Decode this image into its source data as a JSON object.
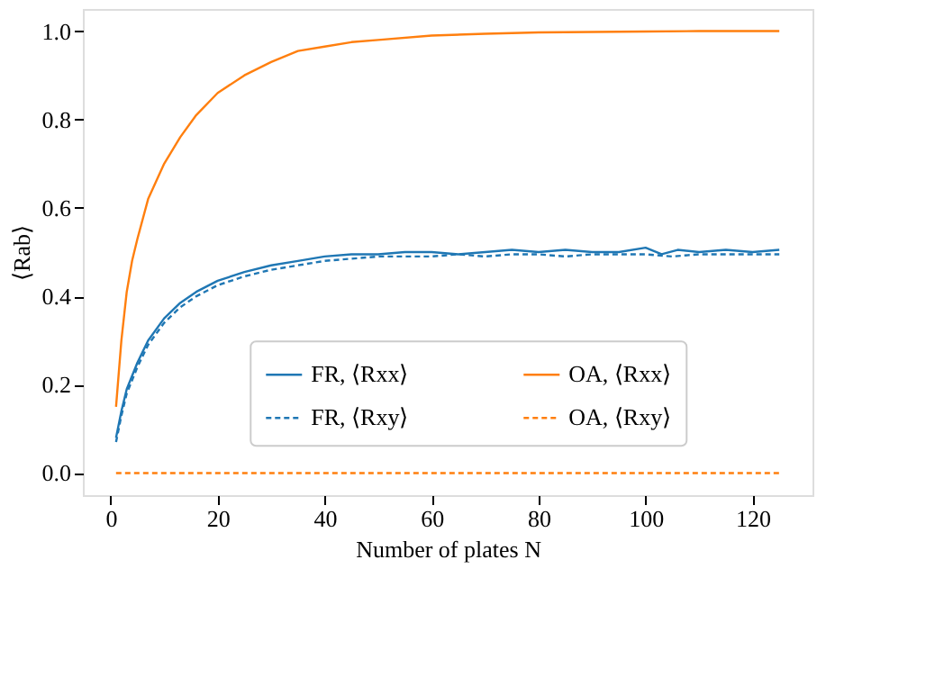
{
  "chart_data": {
    "type": "line",
    "xlabel": "Number of plates N",
    "ylabel": "⟨Rab⟩",
    "xlim": [
      -5.2,
      131.2
    ],
    "ylim": [
      -0.05,
      1.05
    ],
    "xticks": [
      0,
      20,
      40,
      60,
      80,
      100,
      120
    ],
    "yticks": [
      {
        "value": 0,
        "label": "0.0"
      },
      {
        "value": 0.2,
        "label": "0.2"
      },
      {
        "value": 0.4,
        "label": "0.4"
      },
      {
        "value": 0.6,
        "label": "0.6"
      },
      {
        "value": 0.8,
        "label": "0.8"
      },
      {
        "value": 1,
        "label": "1.0"
      }
    ],
    "grid": false,
    "legend": "bottom right",
    "marker": "none",
    "series": [
      {
        "name": "FR, ⟨Rxx⟩",
        "color": "#1f77b4",
        "line_style": "solid",
        "x": [
          1,
          2,
          3,
          5,
          7,
          10,
          13,
          16,
          20,
          25,
          30,
          35,
          40,
          45,
          50,
          55,
          60,
          65,
          70,
          75,
          80,
          85,
          90,
          95,
          100,
          103,
          106,
          110,
          115,
          120,
          125
        ],
        "values": [
          0.08,
          0.14,
          0.19,
          0.25,
          0.3,
          0.35,
          0.385,
          0.41,
          0.435,
          0.455,
          0.47,
          0.48,
          0.49,
          0.495,
          0.495,
          0.5,
          0.5,
          0.495,
          0.5,
          0.505,
          0.5,
          0.505,
          0.5,
          0.5,
          0.51,
          0.495,
          0.505,
          0.5,
          0.505,
          0.5,
          0.505
        ]
      },
      {
        "name": "FR, ⟨Rxy⟩",
        "color": "#1f77b4",
        "line_style": "dashed",
        "x": [
          1,
          2,
          3,
          5,
          7,
          10,
          13,
          16,
          20,
          25,
          30,
          35,
          40,
          45,
          50,
          55,
          60,
          65,
          70,
          75,
          80,
          85,
          90,
          95,
          100,
          105,
          110,
          115,
          120,
          125
        ],
        "values": [
          0.07,
          0.13,
          0.18,
          0.24,
          0.29,
          0.34,
          0.375,
          0.4,
          0.425,
          0.445,
          0.46,
          0.47,
          0.48,
          0.485,
          0.49,
          0.49,
          0.49,
          0.495,
          0.49,
          0.495,
          0.495,
          0.49,
          0.495,
          0.495,
          0.495,
          0.49,
          0.495,
          0.495,
          0.495,
          0.495
        ]
      },
      {
        "name": "OA, ⟨Rxx⟩",
        "color": "#ff7f0e",
        "line_style": "solid",
        "x": [
          1,
          2,
          3,
          4,
          5,
          7,
          10,
          13,
          16,
          20,
          25,
          30,
          35,
          40,
          45,
          50,
          60,
          70,
          80,
          90,
          100,
          110,
          125
        ],
        "values": [
          0.15,
          0.3,
          0.41,
          0.48,
          0.53,
          0.62,
          0.7,
          0.76,
          0.81,
          0.86,
          0.9,
          0.93,
          0.955,
          0.965,
          0.975,
          0.98,
          0.99,
          0.994,
          0.997,
          0.998,
          0.999,
          1.0,
          1.0
        ]
      },
      {
        "name": "OA, ⟨Rxy⟩",
        "color": "#ff7f0e",
        "line_style": "dashed",
        "x": [
          1,
          125
        ],
        "values": [
          0.0,
          0.0
        ]
      }
    ]
  }
}
